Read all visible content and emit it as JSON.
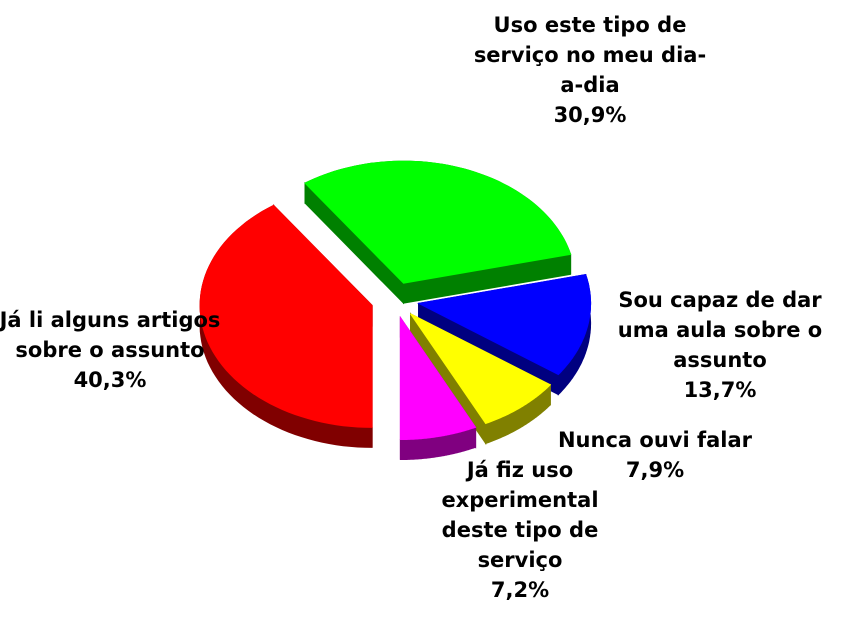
{
  "chart_data": {
    "type": "pie",
    "categories": [
      "Já li alguns artigos sobre o assunto",
      "Uso este tipo de serviço no meu dia-a-dia",
      "Sou capaz de dar uma aula sobre o assunto",
      "Nunca ouvi falar",
      "Já fiz uso experimental deste tipo de serviço"
    ],
    "values": [
      40.3,
      30.9,
      13.7,
      7.9,
      7.2
    ],
    "value_labels": [
      "40,3%",
      "30,9%",
      "13,7%",
      "7,9%",
      "7,2%"
    ],
    "colors": [
      "#ff0000",
      "#00ff00",
      "#0000ff",
      "#ffff00",
      "#ff00ff"
    ]
  }
}
